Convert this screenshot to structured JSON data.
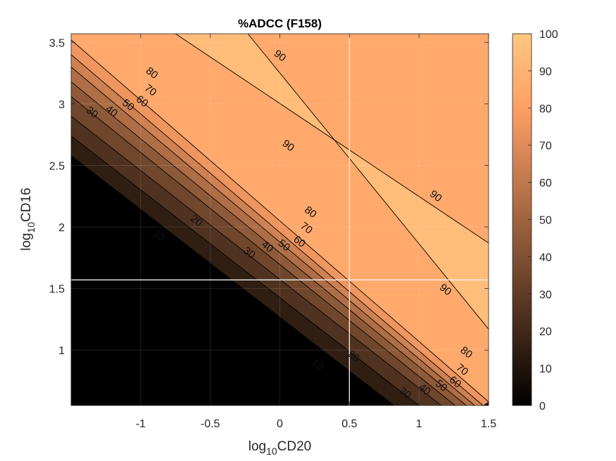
{
  "chart_data": {
    "type": "contour",
    "title": "%ADCC (F158)",
    "xlabel": {
      "base": "log",
      "sub": "10",
      "rest": "CD20"
    },
    "ylabel": {
      "base": "log",
      "sub": "10",
      "rest": "CD16"
    },
    "xlim": [
      -1.5,
      1.5
    ],
    "ylim": [
      0.55,
      3.57
    ],
    "xticks": [
      -1,
      -0.5,
      0,
      0.5,
      1,
      1.5
    ],
    "xtick_labels": [
      "-1",
      "-0.5",
      "0",
      "0.5",
      "1",
      "1.5"
    ],
    "yticks": [
      1,
      1.5,
      2,
      2.5,
      3,
      3.5
    ],
    "ytick_labels": [
      "1",
      "1.5",
      "2",
      "2.5",
      "3",
      "3.5"
    ],
    "grid": true,
    "colorbar": {
      "range": [
        0,
        100
      ],
      "ticks": [
        0,
        10,
        20,
        30,
        40,
        50,
        60,
        70,
        80,
        90,
        100
      ],
      "tick_labels": [
        "0",
        "10",
        "20",
        "30",
        "40",
        "50",
        "60",
        "70",
        "80",
        "90",
        "100"
      ],
      "colormap": "copper"
    },
    "contour_levels": [
      10,
      20,
      30,
      40,
      50,
      60,
      70,
      80,
      90
    ],
    "contour_lines": [
      {
        "level": 10,
        "start": [
          -1.5,
          2.58
        ],
        "end": [
          0.82,
          0.55
        ]
      },
      {
        "level": 20,
        "start": [
          -1.5,
          2.74
        ],
        "end": [
          1.0,
          0.55
        ]
      },
      {
        "level": 30,
        "start": [
          -1.5,
          2.9
        ],
        "end": [
          1.16,
          0.55
        ]
      },
      {
        "level": 40,
        "start": [
          -1.5,
          3.06
        ],
        "end": [
          1.26,
          0.55
        ]
      },
      {
        "level": 50,
        "start": [
          -1.5,
          3.18
        ],
        "end": [
          1.34,
          0.55
        ]
      },
      {
        "level": 60,
        "start": [
          -1.5,
          3.3
        ],
        "end": [
          1.4,
          0.55
        ]
      },
      {
        "level": 70,
        "start": [
          -1.5,
          3.4
        ],
        "end": [
          1.46,
          0.55
        ]
      },
      {
        "level": 80,
        "start": [
          -1.5,
          3.52
        ],
        "end": [
          1.5,
          0.58
        ]
      },
      {
        "level": 90,
        "start": [
          -0.75,
          3.57
        ],
        "end": [
          1.5,
          1.87
        ]
      },
      {
        "level": 90,
        "start": [
          -0.23,
          3.57
        ],
        "end": [
          1.5,
          1.17
        ]
      }
    ],
    "contour_labels": [
      {
        "text": "90",
        "x": 0.0,
        "y": 3.39
      },
      {
        "text": "90",
        "x": 0.06,
        "y": 2.66
      },
      {
        "text": "90",
        "x": 1.12,
        "y": 2.25
      },
      {
        "text": "90",
        "x": 1.19,
        "y": 1.49
      },
      {
        "text": "80",
        "x": -0.92,
        "y": 3.25
      },
      {
        "text": "70",
        "x": -0.93,
        "y": 3.11
      },
      {
        "text": "60",
        "x": -0.99,
        "y": 3.02
      },
      {
        "text": "50",
        "x": -1.09,
        "y": 2.99
      },
      {
        "text": "40",
        "x": -1.21,
        "y": 2.94
      },
      {
        "text": "30",
        "x": -1.35,
        "y": 2.93
      },
      {
        "text": "20",
        "x": -0.6,
        "y": 2.05
      },
      {
        "text": "10",
        "x": -0.87,
        "y": 1.93
      },
      {
        "text": "80",
        "x": 0.22,
        "y": 2.12
      },
      {
        "text": "70",
        "x": 0.19,
        "y": 1.99
      },
      {
        "text": "60",
        "x": 0.14,
        "y": 1.88
      },
      {
        "text": "50",
        "x": 0.03,
        "y": 1.85
      },
      {
        "text": "40",
        "x": -0.09,
        "y": 1.84
      },
      {
        "text": "30",
        "x": -0.22,
        "y": 1.79
      },
      {
        "text": "80",
        "x": 1.34,
        "y": 0.98
      },
      {
        "text": "70",
        "x": 1.31,
        "y": 0.84
      },
      {
        "text": "60",
        "x": 1.26,
        "y": 0.74
      },
      {
        "text": "50",
        "x": 1.16,
        "y": 0.71
      },
      {
        "text": "40",
        "x": 1.04,
        "y": 0.68
      },
      {
        "text": "30",
        "x": 0.9,
        "y": 0.65
      },
      {
        "text": "20",
        "x": 0.53,
        "y": 0.95
      },
      {
        "text": "10",
        "x": 0.27,
        "y": 0.88
      }
    ],
    "crosshair": {
      "x": 0.5,
      "y": 1.57
    }
  }
}
